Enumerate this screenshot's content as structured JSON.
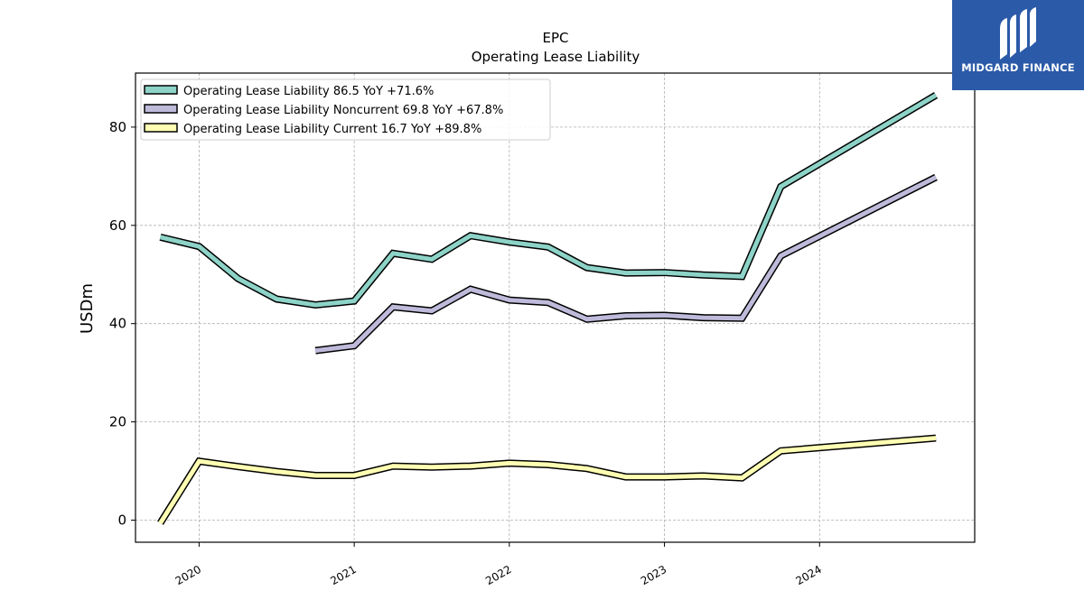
{
  "brand": {
    "name": "MIDGARD FINANCE",
    "bg_color": "#2b5aa8"
  },
  "chart_data": {
    "type": "line",
    "title": "EPC",
    "subtitle": "Operating Lease Liability",
    "ylabel": "USDm",
    "xlabel": "",
    "ylim": [
      -4.5,
      91
    ],
    "xlim": [
      2019.59,
      2025.0
    ],
    "yticks": [
      0,
      20,
      40,
      60,
      80
    ],
    "xticks": [
      2020,
      2021,
      2022,
      2023,
      2024
    ],
    "xtick_labels": [
      "2020",
      "2021",
      "2022",
      "2023",
      "2024"
    ],
    "grid": true,
    "legend_position": "top-left",
    "series": [
      {
        "name": "Operating Lease Liability  86.5 YoY +71.6%",
        "color": "#8dd3c7",
        "x": [
          2019.75,
          2020.0,
          2020.25,
          2020.5,
          2020.75,
          2021.0,
          2021.25,
          2021.5,
          2021.75,
          2022.0,
          2022.25,
          2022.5,
          2022.75,
          2023.0,
          2023.25,
          2023.5,
          2023.75,
          2024.75
        ],
        "y": [
          57.6,
          55.7,
          49.2,
          45.0,
          43.8,
          44.6,
          54.3,
          53.1,
          57.9,
          56.6,
          55.6,
          51.4,
          50.3,
          50.4,
          49.9,
          49.6,
          67.9,
          86.5
        ]
      },
      {
        "name": "Operating Lease Liability Noncurrent  69.8 YoY +67.8%",
        "color": "#bebada",
        "x": [
          2020.75,
          2021.0,
          2021.25,
          2021.5,
          2021.75,
          2022.0,
          2022.25,
          2022.5,
          2022.75,
          2023.0,
          2023.25,
          2023.5,
          2023.75,
          2024.75
        ],
        "y": [
          34.5,
          35.5,
          43.4,
          42.6,
          47.0,
          44.8,
          44.3,
          40.9,
          41.6,
          41.7,
          41.2,
          41.1,
          53.8,
          69.8
        ]
      },
      {
        "name": "Operating Lease Liability Current  16.7 YoY +89.8%",
        "color": "#ffffb3",
        "x": [
          2019.75,
          2020.0,
          2020.25,
          2020.5,
          2020.75,
          2021.0,
          2021.25,
          2021.5,
          2021.75,
          2022.0,
          2022.25,
          2022.5,
          2022.75,
          2023.0,
          2023.25,
          2023.5,
          2023.75,
          2024.75
        ],
        "y": [
          -0.6,
          12.0,
          10.9,
          9.9,
          9.1,
          9.1,
          11.0,
          10.8,
          11.0,
          11.6,
          11.3,
          10.5,
          8.8,
          8.8,
          9.0,
          8.6,
          14.1,
          16.7
        ]
      }
    ]
  }
}
